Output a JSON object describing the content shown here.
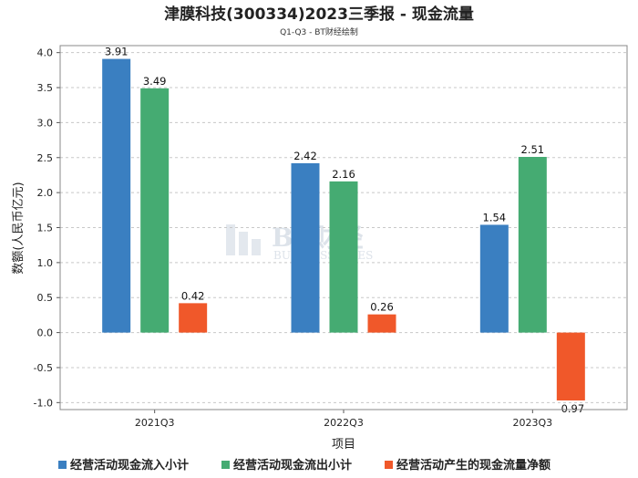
{
  "chart_data": {
    "type": "bar",
    "title": "津膜科技(300334)2023三季报 - 现金流量",
    "subtitle": "Q1-Q3 - BT财经绘制",
    "xlabel": "项目",
    "ylabel": "数额(人民币亿元)",
    "categories": [
      "2021Q3",
      "2022Q3",
      "2023Q3"
    ],
    "ylim": [
      -1.1,
      4.1
    ],
    "yticks": [
      4.0,
      3.5,
      3.0,
      2.5,
      2.0,
      1.5,
      1.0,
      0.5,
      0.0,
      -0.5,
      -1.0
    ],
    "yticklabels": [
      "4.0",
      "3.5",
      "3.0",
      "2.5",
      "2.0",
      "1.5",
      "1.0",
      "0.5",
      "0.0",
      "-0.5",
      "-1.0"
    ],
    "grid": true,
    "legend_position": "bottom",
    "series": [
      {
        "name": "经营活动现金流入小计",
        "color": "#3a7fc1",
        "values": [
          3.91,
          2.42,
          1.54
        ],
        "labels": [
          "3.91",
          "2.42",
          "1.54"
        ]
      },
      {
        "name": "经营活动现金流出小计",
        "color": "#45ab72",
        "values": [
          3.49,
          2.16,
          2.51
        ],
        "labels": [
          "3.49",
          "2.16",
          "2.51"
        ]
      },
      {
        "name": "经营活动产生的现金流量净额",
        "color": "#f0582a",
        "values": [
          0.42,
          0.26,
          -0.97
        ],
        "labels": [
          "0.42",
          "0.26",
          "-0.97"
        ]
      }
    ]
  },
  "watermark": {
    "brand": "BT财经",
    "tagline": "BUSINESSTIMES"
  }
}
